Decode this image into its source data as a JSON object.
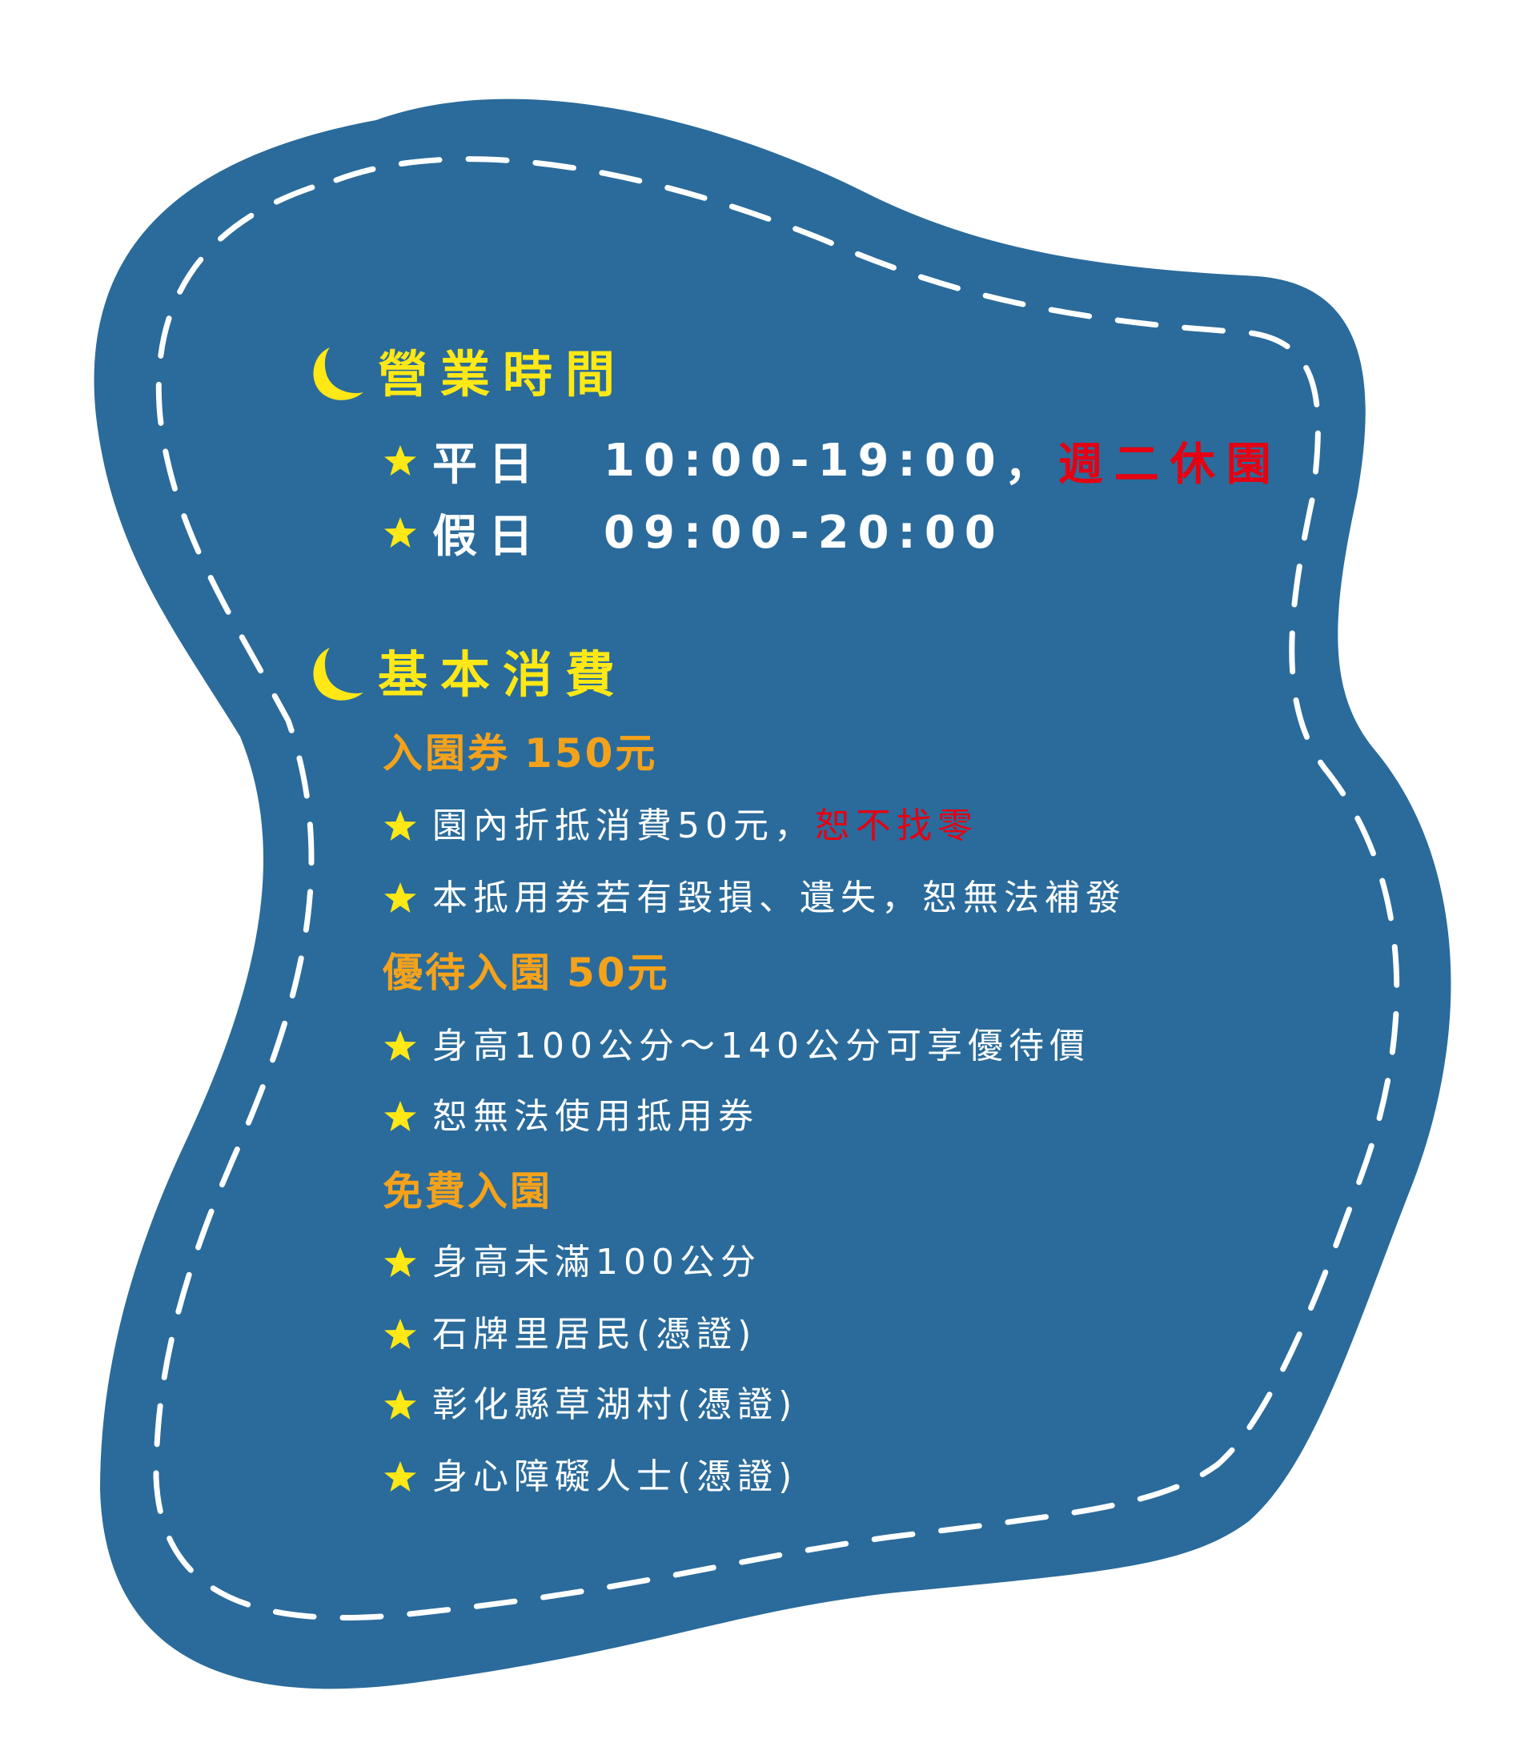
{
  "theme": {
    "background": "#ffffff",
    "blob_fill": "#2a6b9b",
    "dash_color": "#ffffff",
    "heading_color": "#ffe815",
    "subheading_color": "#f5a21b",
    "text_color": "#ffffff",
    "warning_color": "#e50012",
    "icons": [
      "moon-icon",
      "star-icon"
    ]
  },
  "hours": {
    "title": "營業時間",
    "weekday": {
      "label": "平日",
      "time": "10:00-19:00",
      "separator": "，",
      "closed_note": "週二休園"
    },
    "holiday": {
      "label": "假日",
      "time": "09:00-20:00"
    }
  },
  "fees": {
    "title": "基本消費",
    "ticket": {
      "name": "入園券",
      "price": "150元",
      "items": [
        {
          "text": "園內折抵消費50元，",
          "warning": "恕不找零"
        },
        {
          "text": "本抵用券若有毀損、遺失，恕無法補發",
          "warning": ""
        }
      ]
    },
    "discount": {
      "name": "優待入園",
      "price": "50元",
      "items": [
        {
          "text": "身高100公分～140公分可享優待價"
        },
        {
          "text": "恕無法使用抵用券"
        }
      ]
    },
    "free": {
      "name": "免費入園",
      "items": [
        {
          "text": "身高未滿100公分"
        },
        {
          "text": "石牌里居民(憑證)"
        },
        {
          "text": "彰化縣草湖村(憑證)"
        },
        {
          "text": "身心障礙人士(憑證)"
        }
      ]
    }
  }
}
